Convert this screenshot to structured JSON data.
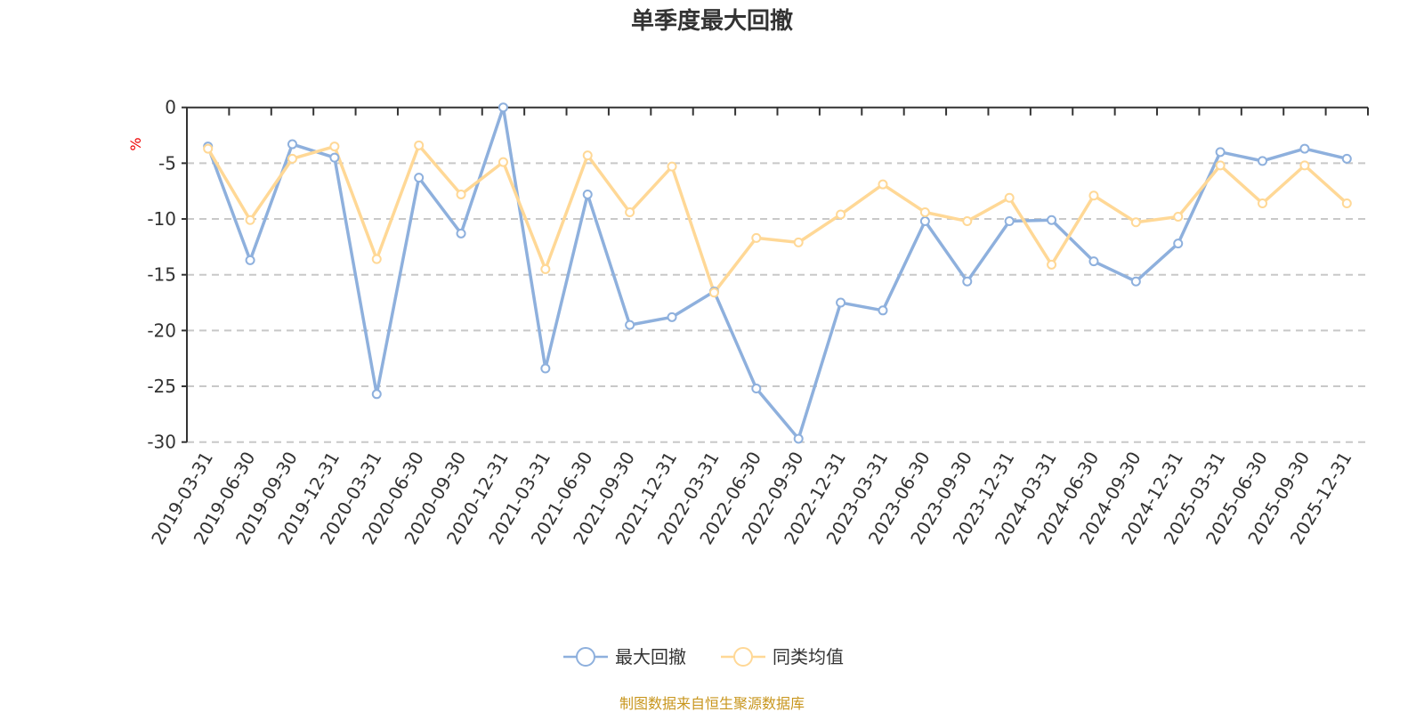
{
  "chart_data": {
    "type": "line",
    "title": "单季度最大回撤",
    "ylabel": "%",
    "xlabel": "",
    "ylim": [
      -30,
      0
    ],
    "yticks": [
      0,
      -5,
      -10,
      -15,
      -20,
      -25,
      -30
    ],
    "grid": true,
    "legend_position": "bottom",
    "categories": [
      "2019-03-31",
      "2019-06-30",
      "2019-09-30",
      "2019-12-31",
      "2020-03-31",
      "2020-06-30",
      "2020-09-30",
      "2020-12-31",
      "2021-03-31",
      "2021-06-30",
      "2021-09-30",
      "2021-12-31",
      "2022-03-31",
      "2022-06-30",
      "2022-09-30",
      "2022-12-31",
      "2023-03-31",
      "2023-06-30",
      "2023-09-30",
      "2023-12-31",
      "2024-03-31",
      "2024-06-30",
      "2024-09-30",
      "2024-12-31",
      "2025-03-31",
      "2025-06-30",
      "2025-09-30",
      "2025-12-31"
    ],
    "series": [
      {
        "name": "最大回撤",
        "color": "#8eb0dd",
        "values": [
          -3.5,
          -13.7,
          -3.3,
          -4.5,
          -25.7,
          -6.3,
          -11.3,
          0,
          -23.4,
          -7.8,
          -19.5,
          -18.8,
          -16.5,
          -25.2,
          -29.7,
          -17.5,
          -18.2,
          -10.2,
          -15.6,
          -10.2,
          -10.1,
          -13.8,
          -15.6,
          -12.2,
          -4.0,
          -4.8,
          -3.7,
          -4.6
        ]
      },
      {
        "name": "同类均值",
        "color": "#ffd896",
        "values": [
          -3.7,
          -10.1,
          -4.6,
          -3.5,
          -13.6,
          -3.4,
          -7.8,
          -4.9,
          -14.5,
          -4.3,
          -9.4,
          -5.3,
          -16.6,
          -11.7,
          -12.1,
          -9.6,
          -6.9,
          -9.4,
          -10.2,
          -8.1,
          -14.1,
          -7.9,
          -10.3,
          -9.8,
          -5.2,
          -8.6,
          -5.2,
          -8.6
        ]
      }
    ],
    "source": "制图数据来自恒生聚源数据库"
  }
}
